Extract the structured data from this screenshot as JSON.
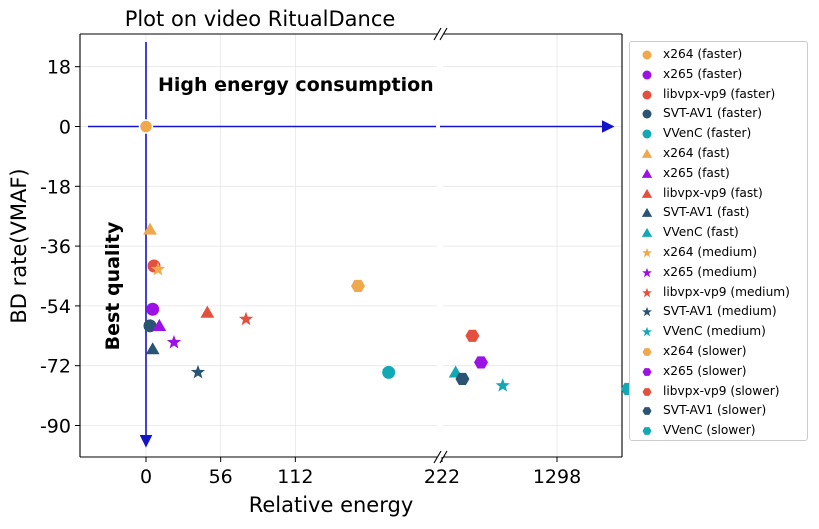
{
  "chart_data": {
    "type": "scatter",
    "title": "Plot on video RitualDance",
    "xlabel": "Relative energy",
    "ylabel": "BD rate(VMAF)",
    "x_axis": "broken",
    "x_tick_labels_left": [
      "0",
      "56",
      "112",
      "222"
    ],
    "x_tick_labels_right": [
      "1298"
    ],
    "y_tick_labels": [
      "18",
      "0",
      "-18",
      "-36",
      "-54",
      "-72",
      "-90"
    ],
    "ylim": [
      -100,
      28
    ],
    "grid": true,
    "legend_placement": "outside-right",
    "annotations": {
      "top": "High energy consumption",
      "left": "Best quality"
    },
    "colors": {
      "x264": "#f0a84c",
      "x265": "#9b11e6",
      "libvpx-vp9": "#e3503e",
      "SVT-AV1": "#2b5373",
      "VVenC": "#12a9b5",
      "axis_arrows": "#1414c8"
    },
    "series": [
      {
        "name": "x264 (faster)",
        "codec": "x264",
        "preset": "faster",
        "marker": "circle",
        "points": [
          [
            0,
            0
          ]
        ]
      },
      {
        "name": "x265 (faster)",
        "codec": "x265",
        "preset": "faster",
        "marker": "circle",
        "points": [
          [
            5,
            -55
          ]
        ]
      },
      {
        "name": "libvpx-vp9 (faster)",
        "codec": "libvpx-vp9",
        "preset": "faster",
        "marker": "circle",
        "points": [
          [
            6,
            -42
          ]
        ]
      },
      {
        "name": "SVT-AV1 (faster)",
        "codec": "SVT-AV1",
        "preset": "faster",
        "marker": "circle",
        "points": [
          [
            3,
            -60
          ]
        ]
      },
      {
        "name": "VVenC (faster)",
        "codec": "VVenC",
        "preset": "faster",
        "marker": "circle",
        "points": [
          [
            182,
            -74
          ]
        ]
      },
      {
        "name": "x264 (fast)",
        "codec": "x264",
        "preset": "fast",
        "marker": "triangle",
        "points": [
          [
            3,
            -31
          ]
        ]
      },
      {
        "name": "x265 (fast)",
        "codec": "x265",
        "preset": "fast",
        "marker": "triangle",
        "points": [
          [
            10,
            -60
          ]
        ]
      },
      {
        "name": "libvpx-vp9 (fast)",
        "codec": "libvpx-vp9",
        "preset": "fast",
        "marker": "triangle",
        "points": [
          [
            46,
            -56
          ]
        ]
      },
      {
        "name": "SVT-AV1 (fast)",
        "codec": "SVT-AV1",
        "preset": "fast",
        "marker": "triangle",
        "points": [
          [
            5,
            -67
          ]
        ]
      },
      {
        "name": "VVenC (fast)",
        "codec": "VVenC",
        "preset": "fast",
        "marker": "triangle",
        "points": [
          [
            270,
            -74
          ]
        ]
      },
      {
        "name": "x264 (medium)",
        "codec": "x264",
        "preset": "medium",
        "marker": "star",
        "points": [
          [
            9,
            -43
          ]
        ]
      },
      {
        "name": "x265 (medium)",
        "codec": "x265",
        "preset": "medium",
        "marker": "star",
        "points": [
          [
            21,
            -65
          ]
        ]
      },
      {
        "name": "libvpx-vp9 (medium)",
        "codec": "libvpx-vp9",
        "preset": "medium",
        "marker": "star",
        "points": [
          [
            75,
            -58
          ]
        ]
      },
      {
        "name": "SVT-AV1 (medium)",
        "codec": "SVT-AV1",
        "preset": "medium",
        "marker": "star",
        "points": [
          [
            39,
            -74
          ]
        ]
      },
      {
        "name": "VVenC (medium)",
        "codec": "VVenC",
        "preset": "medium",
        "marker": "star",
        "points": [
          [
            560,
            -78
          ]
        ]
      },
      {
        "name": "x264 (slower)",
        "codec": "x264",
        "preset": "slower",
        "marker": "hexagon",
        "points": [
          [
            159,
            -48
          ]
        ]
      },
      {
        "name": "x265 (slower)",
        "codec": "x265",
        "preset": "slower",
        "marker": "hexagon",
        "points": [
          [
            400,
            -71
          ]
        ]
      },
      {
        "name": "libvpx-vp9 (slower)",
        "codec": "libvpx-vp9",
        "preset": "slower",
        "marker": "hexagon",
        "points": [
          [
            350,
            -63
          ]
        ]
      },
      {
        "name": "SVT-AV1 (slower)",
        "codec": "SVT-AV1",
        "preset": "slower",
        "marker": "hexagon",
        "points": [
          [
            300,
            -76
          ]
        ]
      },
      {
        "name": "VVenC (slower)",
        "codec": "VVenC",
        "preset": "slower",
        "marker": "hexagon",
        "points": [
          [
            3900,
            -79
          ]
        ]
      }
    ]
  }
}
